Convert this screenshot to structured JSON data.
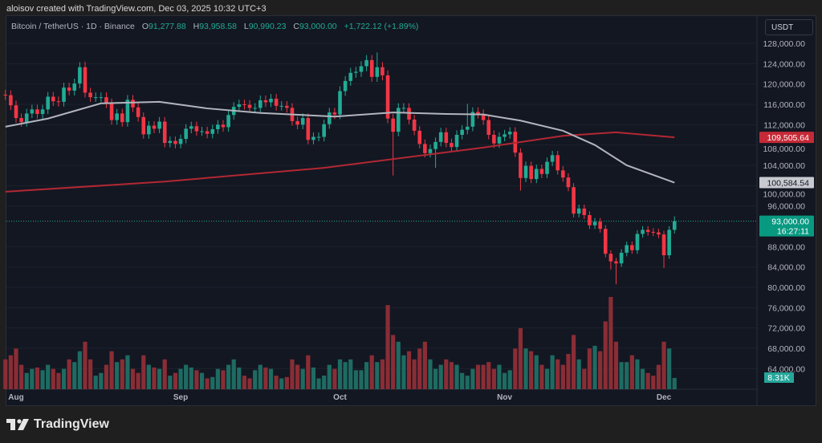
{
  "credit": "aloisov created with TradingView.com, Dec 03, 2025 10:32 UTC+3",
  "legend": {
    "symbol": "Bitcoin / TetherUS · 1D · Binance",
    "o_label": "O",
    "o": "91,277.88",
    "h_label": "H",
    "h": "93,958.58",
    "l_label": "L",
    "l": "90,990.23",
    "c_label": "C",
    "c": "93,000.00",
    "change": "+1,722.12 (+1.89%)"
  },
  "currency_button": "USDT",
  "logo_text": "TradingView",
  "colors": {
    "up": "#22ab94",
    "down": "#f23645",
    "vol_up": "#1e6b62",
    "vol_down": "#8a2d35",
    "ma_fast": "#b2b5be",
    "ma_slow": "#b22833"
  },
  "price_axis": {
    "ticks": [
      128000,
      124000,
      120000,
      116000,
      112000,
      108000,
      104000,
      100000,
      96000,
      88000,
      84000,
      80000,
      76000,
      72000,
      68000,
      64000
    ],
    "labels": [
      "128,000.00",
      "124,000.00",
      "120,000.00",
      "116,000.00",
      "112,000.00",
      "108,000.00",
      "104,000.00",
      "100,000.00",
      "96,000.00",
      "88,000.00",
      "84,000.00",
      "80,000.00",
      "76,000.00",
      "72,000.00",
      "68,000.00",
      "64,000.00"
    ],
    "badges": {
      "ma_slow": "109,505.64",
      "ma_fast": "100,584.54",
      "last_price": "93,000.00",
      "countdown": "16:27:11",
      "volume": "8.31K"
    }
  },
  "time_axis": [
    {
      "label": "Aug",
      "index": 2
    },
    {
      "label": "Sep",
      "index": 33
    },
    {
      "label": "Oct",
      "index": 63
    },
    {
      "label": "Nov",
      "index": 94
    },
    {
      "label": "Dec",
      "index": 124
    }
  ],
  "chart_data": {
    "type": "candlestick",
    "symbol": "BTCUSDT",
    "interval": "1D",
    "start_date": "2025-07-30",
    "first_open": 117.9,
    "close": [
      117.8,
      115.8,
      113.3,
      112.5,
      114.2,
      115.0,
      114.1,
      115.0,
      117.5,
      116.6,
      116.5,
      119.3,
      118.7,
      120.1,
      123.3,
      118.3,
      117.4,
      117.4,
      117.4,
      116.2,
      112.9,
      114.2,
      112.5,
      116.9,
      115.4,
      113.5,
      110.1,
      111.8,
      111.2,
      112.6,
      108.4,
      108.8,
      108.2,
      109.2,
      111.2,
      111.7,
      110.7,
      110.7,
      110.2,
      111.1,
      112.0,
      111.5,
      113.9,
      115.5,
      116.0,
      115.9,
      115.3,
      115.3,
      116.8,
      116.4,
      117.1,
      115.7,
      115.7,
      115.3,
      112.7,
      112.0,
      113.3,
      109.0,
      109.6,
      109.6,
      112.1,
      114.4,
      114.0,
      118.6,
      120.6,
      122.2,
      122.4,
      123.5,
      124.7,
      121.4,
      123.3,
      121.7,
      113.2,
      110.6,
      115.3,
      115.3,
      113.0,
      110.8,
      108.2,
      106.4,
      107.2,
      108.6,
      110.5,
      108.4,
      107.6,
      110.0,
      111.0,
      111.6,
      114.5,
      114.1,
      112.9,
      110.0,
      108.3,
      109.6,
      110.1,
      110.6,
      106.5,
      101.5,
      103.9,
      101.3,
      103.3,
      102.3,
      104.7,
      106.0,
      103.0,
      101.6,
      99.7,
      94.5,
      95.5,
      94.2,
      92.2,
      92.9,
      91.5,
      86.6,
      85.1,
      84.7,
      86.8,
      88.3,
      87.3,
      90.5,
      91.3,
      90.9,
      90.8,
      90.4,
      86.3,
      91.3,
      93.0
    ],
    "price_unit": "thousand USDT",
    "wick_extremes": [
      {
        "i": 15,
        "h": 124.4
      },
      {
        "i": 70,
        "h": 126.2
      },
      {
        "i": 73,
        "l": 102.0
      },
      {
        "i": 81,
        "l": 103.5
      },
      {
        "i": 87,
        "h": 116.1
      },
      {
        "i": 97,
        "l": 99.0
      },
      {
        "i": 115,
        "l": 89.2
      },
      {
        "i": 114,
        "l": 83.5
      },
      {
        "i": 115,
        "l": 80.6
      },
      {
        "i": 124,
        "l": 83.8
      },
      {
        "i": 126,
        "h": 93.96
      }
    ],
    "volume": [
      22,
      25,
      30,
      18,
      12,
      15,
      16,
      14,
      18,
      15,
      12,
      15,
      22,
      20,
      28,
      35,
      22,
      10,
      12,
      18,
      28,
      20,
      22,
      25,
      15,
      12,
      25,
      18,
      16,
      15,
      22,
      10,
      12,
      15,
      18,
      16,
      14,
      12,
      8,
      9,
      15,
      14,
      18,
      22,
      16,
      10,
      8,
      14,
      18,
      16,
      15,
      10,
      8,
      9,
      22,
      18,
      15,
      25,
      16,
      8,
      10,
      18,
      15,
      22,
      20,
      22,
      14,
      14,
      20,
      25,
      20,
      22,
      62,
      40,
      35,
      25,
      28,
      22,
      30,
      35,
      22,
      15,
      18,
      22,
      20,
      18,
      12,
      10,
      15,
      18,
      18,
      20,
      15,
      18,
      12,
      14,
      30,
      45,
      30,
      28,
      25,
      18,
      15,
      25,
      22,
      18,
      26,
      40,
      22,
      15,
      30,
      32,
      28,
      50,
      68,
      35,
      20,
      20,
      25,
      22,
      15,
      12,
      10,
      18,
      35,
      30,
      8.31
    ],
    "volume_unit": "K",
    "ma_fast": [
      [
        0,
        111.6
      ],
      [
        8,
        113.2
      ],
      [
        18,
        116.2
      ],
      [
        29,
        116.5
      ],
      [
        38,
        115.2
      ],
      [
        48,
        114.3
      ],
      [
        62,
        113.6
      ],
      [
        73,
        114.4
      ],
      [
        83,
        114.1
      ],
      [
        90,
        114.0
      ],
      [
        97,
        112.8
      ],
      [
        105,
        110.8
      ],
      [
        111,
        108.0
      ],
      [
        117,
        104.0
      ],
      [
        126,
        100.6
      ]
    ],
    "ma_slow": [
      [
        0,
        98.8
      ],
      [
        30,
        100.8
      ],
      [
        60,
        103.5
      ],
      [
        90,
        107.5
      ],
      [
        105,
        109.8
      ],
      [
        115,
        110.5
      ],
      [
        126,
        109.5
      ]
    ],
    "last_price": 93.0
  }
}
